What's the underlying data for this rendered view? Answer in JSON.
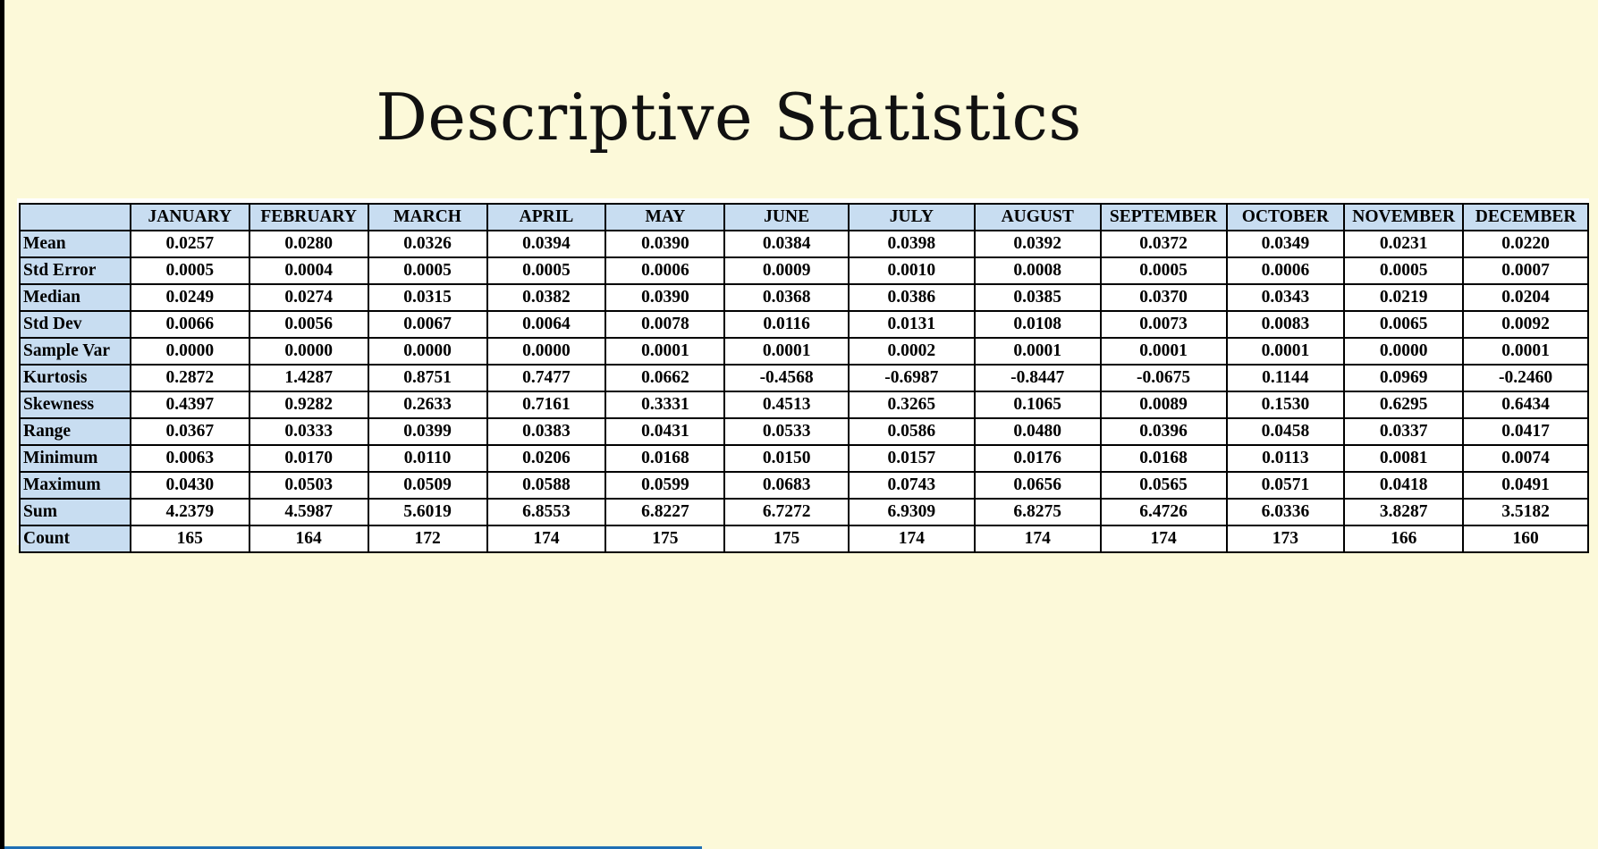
{
  "slide": {
    "title": "Descriptive Statistics"
  },
  "table": {
    "corner": "",
    "columns": [
      "JANUARY",
      "FEBRUARY",
      "MARCH",
      "APRIL",
      "MAY",
      "JUNE",
      "JULY",
      "AUGUST",
      "SEPTEMBER",
      "OCTOBER",
      "NOVEMBER",
      "DECEMBER"
    ],
    "rows": [
      {
        "label": "Mean",
        "values": [
          "0.0257",
          "0.0280",
          "0.0326",
          "0.0394",
          "0.0390",
          "0.0384",
          "0.0398",
          "0.0392",
          "0.0372",
          "0.0349",
          "0.0231",
          "0.0220"
        ]
      },
      {
        "label": "Std Error",
        "values": [
          "0.0005",
          "0.0004",
          "0.0005",
          "0.0005",
          "0.0006",
          "0.0009",
          "0.0010",
          "0.0008",
          "0.0005",
          "0.0006",
          "0.0005",
          "0.0007"
        ]
      },
      {
        "label": "Median",
        "values": [
          "0.0249",
          "0.0274",
          "0.0315",
          "0.0382",
          "0.0390",
          "0.0368",
          "0.0386",
          "0.0385",
          "0.0370",
          "0.0343",
          "0.0219",
          "0.0204"
        ]
      },
      {
        "label": "Std Dev",
        "values": [
          "0.0066",
          "0.0056",
          "0.0067",
          "0.0064",
          "0.0078",
          "0.0116",
          "0.0131",
          "0.0108",
          "0.0073",
          "0.0083",
          "0.0065",
          "0.0092"
        ]
      },
      {
        "label": "Sample Var",
        "values": [
          "0.0000",
          "0.0000",
          "0.0000",
          "0.0000",
          "0.0001",
          "0.0001",
          "0.0002",
          "0.0001",
          "0.0001",
          "0.0001",
          "0.0000",
          "0.0001"
        ]
      },
      {
        "label": "Kurtosis",
        "values": [
          "0.2872",
          "1.4287",
          "0.8751",
          "0.7477",
          "0.0662",
          "-0.4568",
          "-0.6987",
          "-0.8447",
          "-0.0675",
          "0.1144",
          "0.0969",
          "-0.2460"
        ]
      },
      {
        "label": "Skewness",
        "values": [
          "0.4397",
          "0.9282",
          "0.2633",
          "0.7161",
          "0.3331",
          "0.4513",
          "0.3265",
          "0.1065",
          "0.0089",
          "0.1530",
          "0.6295",
          "0.6434"
        ]
      },
      {
        "label": "Range",
        "values": [
          "0.0367",
          "0.0333",
          "0.0399",
          "0.0383",
          "0.0431",
          "0.0533",
          "0.0586",
          "0.0480",
          "0.0396",
          "0.0458",
          "0.0337",
          "0.0417"
        ]
      },
      {
        "label": "Minimum",
        "values": [
          "0.0063",
          "0.0170",
          "0.0110",
          "0.0206",
          "0.0168",
          "0.0150",
          "0.0157",
          "0.0176",
          "0.0168",
          "0.0113",
          "0.0081",
          "0.0074"
        ]
      },
      {
        "label": "Maximum",
        "values": [
          "0.0430",
          "0.0503",
          "0.0509",
          "0.0588",
          "0.0599",
          "0.0683",
          "0.0743",
          "0.0656",
          "0.0565",
          "0.0571",
          "0.0418",
          "0.0491"
        ]
      },
      {
        "label": "Sum",
        "values": [
          "4.2379",
          "4.5987",
          "5.6019",
          "6.8553",
          "6.8227",
          "6.7272",
          "6.9309",
          "6.8275",
          "6.4726",
          "6.0336",
          "3.8287",
          "3.5182"
        ]
      },
      {
        "label": "Count",
        "values": [
          "165",
          "164",
          "172",
          "174",
          "175",
          "175",
          "174",
          "174",
          "174",
          "173",
          "166",
          "160"
        ]
      }
    ]
  },
  "colors": {
    "background": "#fcf9d9",
    "header_fill": "#c8ddf1",
    "border": "#000000",
    "progress_bar": "#1f6fb4"
  }
}
